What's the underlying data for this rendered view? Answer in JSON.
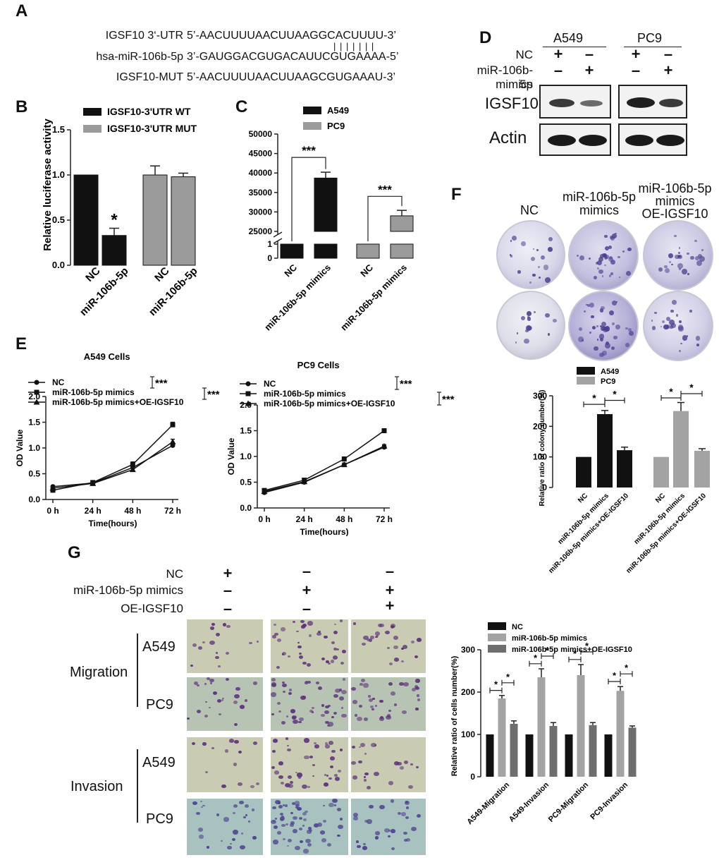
{
  "panels": {
    "A": "A",
    "B": "B",
    "C": "C",
    "D": "D",
    "E": "E",
    "F": "F",
    "G": "G"
  },
  "panelA": {
    "rows": [
      {
        "label": "IGSF10 3‘-UTR",
        "seq": "5’-AACUUUUAACUUAAGGCACUUUU-3’"
      },
      {
        "label": "hsa-miR-106b-5p",
        "seq": "3’-GAUGGACGUGACAUUCGUGAAAA-5’"
      },
      {
        "label": "IGSF10-MUT",
        "seq": "5’-AACUUUUAACUUAAGCGUGAAAU-3’"
      }
    ],
    "pairing": "| | | | | | |"
  },
  "panelD": {
    "cells": [
      "A549",
      "PC9"
    ],
    "conditions": [
      {
        "label": "NC",
        "signs": [
          "+",
          "–",
          "+",
          "–"
        ]
      },
      {
        "label": "miR-106b-5p",
        "signs": [
          "–",
          "+",
          "–",
          "+"
        ]
      }
    ],
    "condition_extra": "mimics",
    "bands": [
      "IGSF10",
      "Actin"
    ]
  },
  "panelF": {
    "columns": [
      "NC",
      "miR-106b-5p\nmimics",
      "miR-106b-5p\nmimics\nOE-IGSF10"
    ]
  },
  "panelG": {
    "conditions": [
      {
        "label": "NC",
        "signs": [
          "+",
          "–",
          "–"
        ]
      },
      {
        "label": "miR-106b-5p mimics",
        "signs": [
          "–",
          "+",
          "+"
        ]
      },
      {
        "label": "OE-IGSF10",
        "signs": [
          "–",
          "–",
          "+"
        ]
      }
    ],
    "groups": [
      "Migration",
      "Invasion"
    ],
    "cells": [
      "A549",
      "PC9"
    ]
  },
  "chart_data": [
    {
      "id": "B",
      "type": "bar",
      "ylabel": "Relative luciferase  activity",
      "ylim": [
        0,
        1.5
      ],
      "yticks": [
        0.0,
        0.5,
        1.0,
        1.5
      ],
      "categories": [
        "NC",
        "miR-106b-5p",
        "NC",
        "miR-106b-5p"
      ],
      "series": [
        {
          "name": "IGSF10-3'UTR WT",
          "color": "#111111",
          "values": [
            1.0,
            0.33,
            null,
            null
          ],
          "errors": [
            0,
            0.08,
            null,
            null
          ]
        },
        {
          "name": "IGSF10-3'UTR MUT",
          "color": "#9b9b9b",
          "values": [
            null,
            null,
            1.0,
            0.98
          ],
          "errors": [
            null,
            null,
            0.1,
            0.04
          ]
        }
      ],
      "annotations": [
        "*"
      ],
      "legend": "top"
    },
    {
      "id": "C",
      "type": "bar",
      "ylabel": "",
      "broken_axis": true,
      "yticks_upper": [
        25000,
        30000,
        35000,
        40000,
        45000,
        50000
      ],
      "yticks_lower": [
        0,
        1
      ],
      "categories": [
        "NC",
        "miR-106b-5p mimics",
        "NC",
        "miR-106b-5p mimics"
      ],
      "series": [
        {
          "name": "A549",
          "color": "#111111",
          "values": [
            1,
            38700,
            null,
            null
          ],
          "errors": [
            0,
            1500,
            null,
            null
          ]
        },
        {
          "name": "PC9",
          "color": "#9b9b9b",
          "values": [
            null,
            null,
            1,
            29000
          ],
          "errors": [
            null,
            null,
            0,
            1400
          ]
        }
      ],
      "annotations": [
        "***",
        "***"
      ],
      "legend": "top-left"
    },
    {
      "id": "E1",
      "type": "line",
      "title": "A549 Cells",
      "xlabel": "Time(hours)",
      "ylabel": "OD Value",
      "x": [
        "0 h",
        "24 h",
        "48 h",
        "72 h"
      ],
      "ylim": [
        0,
        2.0
      ],
      "yticks": [
        0.0,
        0.5,
        1.0,
        1.5,
        2.0
      ],
      "series": [
        {
          "name": "NC",
          "marker": "circle",
          "values": [
            0.25,
            0.32,
            0.62,
            1.05
          ],
          "errors": [
            0.02,
            0.02,
            0.04,
            0.05
          ]
        },
        {
          "name": "miR-106b-5p mimics",
          "marker": "square",
          "values": [
            0.18,
            0.33,
            0.68,
            1.45
          ],
          "errors": [
            0.02,
            0.02,
            0.05,
            0.05
          ]
        },
        {
          "name": "miR-106b-5p mimics+OE-IGSF10",
          "marker": "triangle",
          "values": [
            0.22,
            0.31,
            0.58,
            1.12
          ],
          "errors": [
            0.02,
            0.02,
            0.03,
            0.05
          ]
        }
      ],
      "annotations": [
        "***",
        "***"
      ]
    },
    {
      "id": "E2",
      "type": "line",
      "title": "PC9 Cells",
      "xlabel": "Time(hours)",
      "ylabel": "OD Value",
      "x": [
        "0 h",
        "24 h",
        "48 h",
        "72 h"
      ],
      "ylim": [
        0,
        2.0
      ],
      "yticks": [
        0.0,
        0.5,
        1.0,
        1.5,
        2.0
      ],
      "series": [
        {
          "name": "NC",
          "marker": "circle",
          "values": [
            0.3,
            0.5,
            0.84,
            1.18
          ],
          "errors": [
            0.02,
            0.02,
            0.03,
            0.03
          ]
        },
        {
          "name": "miR-106b-5p mimics",
          "marker": "square",
          "values": [
            0.34,
            0.54,
            0.95,
            1.5
          ],
          "errors": [
            0.02,
            0.02,
            0.04,
            0.02
          ]
        },
        {
          "name": "miR-106b-5p mimics+OE-IGSF10",
          "marker": "triangle",
          "values": [
            0.32,
            0.51,
            0.84,
            1.2
          ],
          "errors": [
            0.02,
            0.02,
            0.03,
            0.03
          ]
        }
      ],
      "annotations": [
        "***",
        "***"
      ]
    },
    {
      "id": "F",
      "type": "bar",
      "ylabel": "Relative ratio of colony number(%)",
      "ylim": [
        0,
        300
      ],
      "yticks": [
        0,
        100,
        200,
        300
      ],
      "categories": [
        "NC",
        "miR-106b-5p mimics",
        "miR-106b-5p mimics+OE-IGSF10",
        "NC",
        "miR-106b-5p mimics",
        "miR-106b-5p mimics+OE-IGSF10"
      ],
      "series": [
        {
          "name": "A549",
          "color": "#111111",
          "values": [
            100,
            240,
            122,
            null,
            null,
            null
          ],
          "errors": [
            0,
            12,
            10,
            null,
            null,
            null
          ]
        },
        {
          "name": "PC9",
          "color": "#a3a3a3",
          "values": [
            null,
            null,
            null,
            100,
            250,
            120
          ],
          "errors": [
            null,
            null,
            null,
            0,
            28,
            7
          ]
        }
      ],
      "annotations": [
        "*",
        "*",
        "*",
        "*"
      ],
      "legend": "top-left"
    },
    {
      "id": "G",
      "type": "bar",
      "ylabel": "Relative ratio of cells number(%)",
      "ylim": [
        0,
        300
      ],
      "yticks": [
        0,
        100,
        200,
        300
      ],
      "categories": [
        "A549-Migration",
        "A549-Invasion",
        "PC9-Migration",
        "PC9-Invasion"
      ],
      "series": [
        {
          "name": "NC",
          "color": "#111111",
          "values": [
            100,
            100,
            100,
            100
          ],
          "errors": [
            0,
            0,
            0,
            0
          ]
        },
        {
          "name": "miR-106b-5p mimics",
          "color": "#a3a3a3",
          "values": [
            185,
            235,
            240,
            203
          ],
          "errors": [
            7,
            20,
            25,
            10
          ]
        },
        {
          "name": "miR-106b-5p mimics+OE-IGSF10",
          "color": "#6e6e6e",
          "values": [
            125,
            120,
            122,
            116
          ],
          "errors": [
            7,
            8,
            6,
            4
          ]
        }
      ],
      "annotations": [
        "*",
        "*",
        "*",
        "*",
        "*",
        "*",
        "*",
        "*"
      ],
      "legend": "top"
    }
  ]
}
